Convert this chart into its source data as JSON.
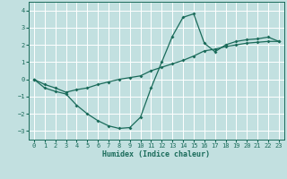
{
  "xlabel": "Humidex (Indice chaleur)",
  "ylabel": "",
  "xlim": [
    -0.5,
    23.5
  ],
  "ylim": [
    -3.5,
    4.5
  ],
  "xticks": [
    0,
    1,
    2,
    3,
    4,
    5,
    6,
    7,
    8,
    9,
    10,
    11,
    12,
    13,
    14,
    15,
    16,
    17,
    18,
    19,
    20,
    21,
    22,
    23
  ],
  "yticks": [
    -3,
    -2,
    -1,
    0,
    1,
    2,
    3,
    4
  ],
  "bg_color": "#c2e0e0",
  "line_color": "#1a6b5a",
  "grid_color": "#ffffff",
  "line1_x": [
    0,
    1,
    2,
    3,
    4,
    5,
    6,
    7,
    8,
    9,
    10,
    11,
    12,
    13,
    14,
    15,
    16,
    17,
    18,
    19,
    20,
    21,
    22,
    23
  ],
  "line1_y": [
    0.0,
    -0.5,
    -0.7,
    -0.85,
    -1.5,
    -2.0,
    -2.4,
    -2.7,
    -2.85,
    -2.8,
    -2.2,
    -0.5,
    1.0,
    2.5,
    3.6,
    3.8,
    2.1,
    1.6,
    2.0,
    2.2,
    2.3,
    2.35,
    2.45,
    2.2
  ],
  "line2_x": [
    0,
    1,
    2,
    3,
    4,
    5,
    6,
    7,
    8,
    9,
    10,
    11,
    12,
    13,
    14,
    15,
    16,
    17,
    18,
    19,
    20,
    21,
    22,
    23
  ],
  "line2_y": [
    0.0,
    -0.3,
    -0.5,
    -0.75,
    -0.6,
    -0.5,
    -0.3,
    -0.15,
    0.0,
    0.1,
    0.2,
    0.5,
    0.7,
    0.9,
    1.1,
    1.35,
    1.65,
    1.75,
    1.9,
    2.0,
    2.1,
    2.15,
    2.2,
    2.2
  ]
}
